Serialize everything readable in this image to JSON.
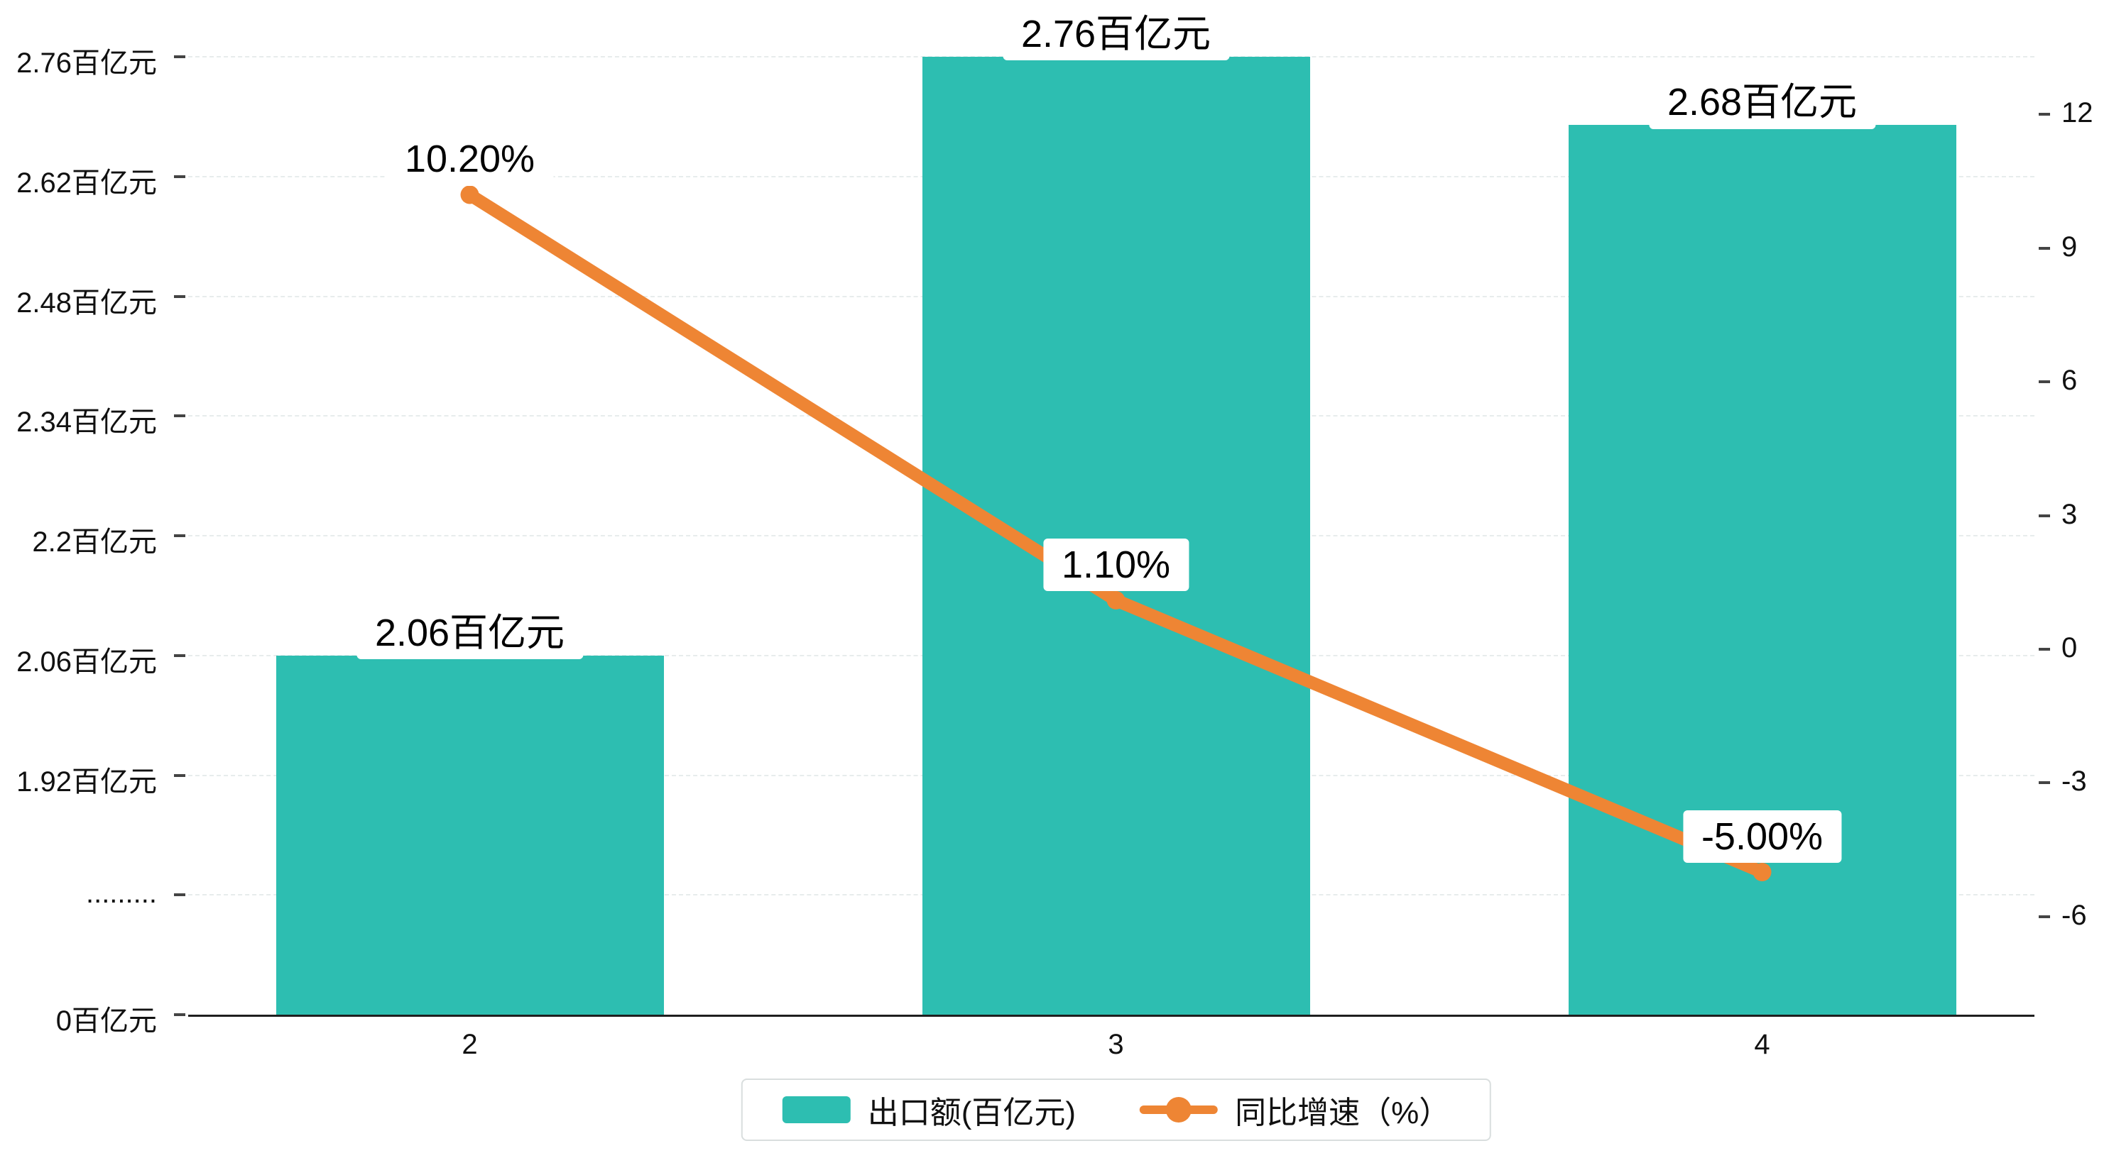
{
  "chart_data": {
    "type": "bar+line",
    "categories": [
      "2",
      "3",
      "4"
    ],
    "series": [
      {
        "name": "出口额(百亿元)",
        "type": "bar",
        "values": [
          2.06,
          2.76,
          2.68
        ],
        "labels": [
          "2.06百亿元",
          "2.76百亿元",
          "2.68百亿元"
        ],
        "color": "#2DBEB1"
      },
      {
        "name": "同比增速（%）",
        "type": "line",
        "values": [
          10.2,
          1.1,
          -5.0
        ],
        "labels": [
          "10.20%",
          "1.10%",
          "-5.00%"
        ],
        "color": "#EE8534"
      }
    ],
    "left_axis": {
      "tick_labels": [
        "0百亿元",
        ".........",
        "1.92百亿元",
        "2.06百亿元",
        "2.2百亿元",
        "2.34百亿元",
        "2.48百亿元",
        "2.62百亿元",
        "2.76百亿元"
      ],
      "axis_break_after_zero": true,
      "value_start": 1.92,
      "value_step": 0.14
    },
    "right_axis": {
      "ticks": [
        -6,
        -3,
        0,
        3,
        6,
        9,
        12
      ],
      "unit": "%"
    },
    "grid": true,
    "legend_position": "bottom",
    "legend": [
      {
        "label": "出口额(百亿元)",
        "marker": "bar-swatch"
      },
      {
        "label": "同比增速（%）",
        "marker": "line-dot"
      }
    ]
  },
  "colors": {
    "bar": "#2DBEB1",
    "line": "#EE8534",
    "axis": "#1f1f1f",
    "grid": "#e7ecec",
    "background": "#ffffff"
  }
}
